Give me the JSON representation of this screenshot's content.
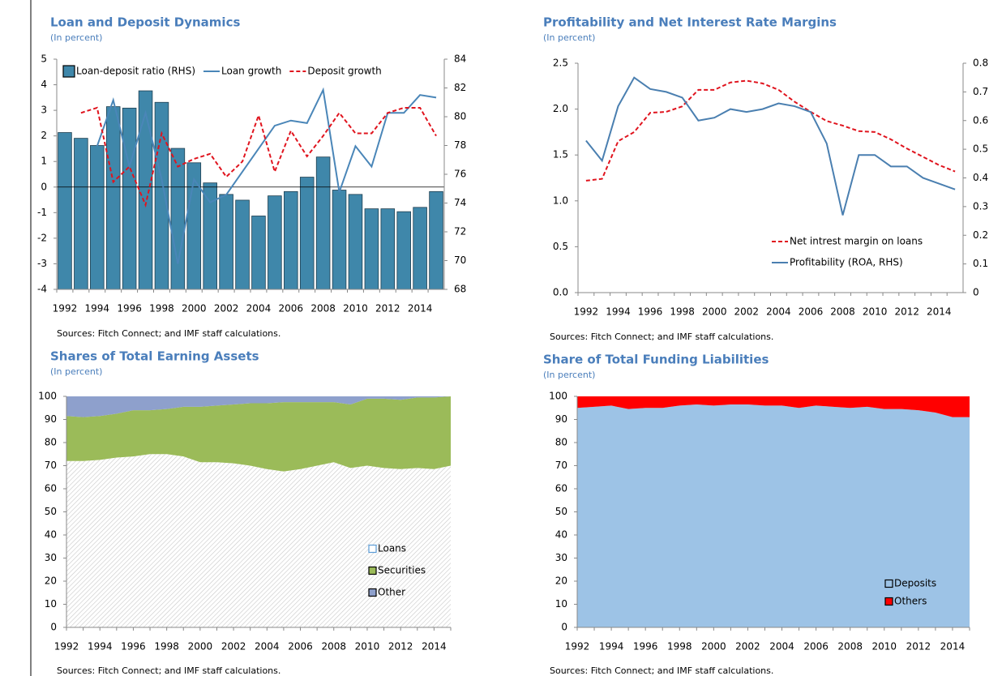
{
  "chart_data": [
    {
      "type": "combo",
      "title": "Loan and Deposit Dynamics",
      "subtitle": "(In percent)",
      "source": "Sources: Fitch Connect; and IMF staff calculations.",
      "categories": [
        "1992",
        null,
        "1994",
        null,
        "1996",
        null,
        "1998",
        null,
        "2000",
        null,
        "2002",
        null,
        "2004",
        null,
        "2006",
        null,
        "2008",
        null,
        "2010",
        null,
        "2012",
        null,
        "2014",
        null
      ],
      "ylim": [
        -4,
        5
      ],
      "yticks": [
        -4,
        -3,
        -2,
        -1,
        0,
        1,
        2,
        3,
        4,
        5
      ],
      "y2lim": [
        68,
        84
      ],
      "y2ticks": [
        68,
        70,
        72,
        74,
        76,
        78,
        80,
        82,
        84
      ],
      "legend": "top",
      "series": [
        {
          "name": "Loan-deposit ratio (RHS)",
          "kind": "bar",
          "axis": "y2",
          "color": "#3f87aa",
          "values": [
            78.9,
            78.5,
            78.0,
            80.7,
            80.6,
            81.8,
            81.0,
            77.8,
            76.8,
            75.4,
            74.6,
            74.2,
            73.1,
            74.5,
            74.8,
            75.8,
            77.2,
            74.9,
            74.6,
            73.6,
            73.6,
            73.4,
            73.7,
            74.8
          ]
        },
        {
          "name": "Loan growth",
          "kind": "line",
          "color": "#4a86b8",
          "style": "solid",
          "values": [
            null,
            null,
            1.6,
            3.4,
            0.8,
            2.9,
            0.3,
            -3.0,
            0.3,
            -0.6,
            -0.3,
            0.6,
            1.5,
            2.4,
            2.6,
            2.5,
            3.8,
            -0.2,
            1.6,
            0.8,
            2.9,
            2.9,
            3.6,
            3.5
          ]
        },
        {
          "name": "Deposit growth",
          "kind": "line",
          "color": "#e0141e",
          "style": "dashed",
          "values": [
            null,
            2.9,
            3.1,
            0.2,
            0.8,
            -0.7,
            2.1,
            0.8,
            1.1,
            1.3,
            0.4,
            1.0,
            2.8,
            0.6,
            2.2,
            1.2,
            2.0,
            2.9,
            2.1,
            2.1,
            2.9,
            3.1,
            3.1,
            2.0
          ]
        }
      ]
    },
    {
      "type": "line",
      "title": "Profitability and Net Interest Rate Margins",
      "subtitle": "(In percent)",
      "source": "Sources: Fitch Connect; and IMF staff calculations.",
      "categories": [
        "1992",
        null,
        "1994",
        null,
        "1996",
        null,
        "1998",
        null,
        "2000",
        null,
        "2002",
        null,
        "2004",
        null,
        "2006",
        null,
        "2008",
        null,
        "2010",
        null,
        "2012",
        null,
        "2014",
        null
      ],
      "ylim": [
        0,
        2.5
      ],
      "yticks": [
        {
          "value": 0,
          "label": "0.0"
        },
        0.5,
        {
          "value": 1,
          "label": "1.0"
        },
        1.5,
        {
          "value": 2,
          "label": "2.0"
        },
        2.5
      ],
      "y2lim": [
        0,
        0.8
      ],
      "y2ticks": [
        0,
        0.1,
        0.2,
        0.3,
        0.4,
        0.5,
        0.6,
        0.7,
        0.8
      ],
      "legend": "lower right",
      "series": [
        {
          "name": "Net intrest margin on loans",
          "kind": "line",
          "color": "#e0141e",
          "style": "dashed",
          "values": [
            1.22,
            1.24,
            1.65,
            1.75,
            1.96,
            1.97,
            2.03,
            2.21,
            2.21,
            2.29,
            2.31,
            2.28,
            2.21,
            2.08,
            1.97,
            1.87,
            1.82,
            1.76,
            1.75,
            1.67,
            1.57,
            1.48,
            1.39,
            1.32
          ]
        },
        {
          "name": "Profitability (ROA, RHS)",
          "kind": "line",
          "axis": "y2",
          "color": "#4a7fb0",
          "style": "solid",
          "values": [
            0.53,
            0.46,
            0.65,
            0.75,
            0.71,
            0.7,
            0.68,
            0.6,
            0.61,
            0.64,
            0.63,
            0.64,
            0.66,
            0.65,
            0.63,
            0.52,
            0.27,
            0.48,
            0.48,
            0.44,
            0.44,
            0.4,
            0.38,
            0.36
          ]
        }
      ]
    },
    {
      "type": "area",
      "title": "Shares of Total Earning Assets",
      "subtitle": "(In percent)",
      "source": "Sources: Fitch Connect; and IMF staff calculations.",
      "categories": [
        "1992",
        null,
        "1994",
        null,
        "1996",
        null,
        "1998",
        null,
        "2000",
        null,
        "2002",
        null,
        "2004",
        null,
        "2006",
        null,
        "2008",
        null,
        "2010",
        null,
        "2012",
        null,
        "2014",
        null
      ],
      "ylim": [
        0,
        100
      ],
      "yticks": [
        0,
        10,
        20,
        30,
        40,
        50,
        60,
        70,
        80,
        90,
        100
      ],
      "legend": "lower right",
      "series": [
        {
          "name": "Loans",
          "color": "#e8e8e8",
          "pattern": "hatch",
          "values": [
            72,
            72,
            72.5,
            73.5,
            74,
            75,
            75,
            74,
            71.5,
            71.5,
            71,
            70,
            68.5,
            67.5,
            68.5,
            70,
            71.5,
            69,
            70,
            69,
            68.5,
            69,
            68.5,
            70
          ]
        },
        {
          "name": "Securities",
          "color": "#9bbb59",
          "values": [
            19.5,
            19,
            19,
            19,
            20,
            19,
            19.5,
            21.5,
            24,
            24.5,
            25.5,
            27,
            28.5,
            30,
            29,
            27.5,
            26,
            27.5,
            29,
            30,
            30,
            30.5,
            31,
            30
          ]
        },
        {
          "name": "Other",
          "color": "#8ea0cc",
          "values": [
            8.5,
            9,
            8.5,
            7.5,
            6,
            6,
            5.5,
            4.5,
            4.5,
            4,
            3.5,
            3,
            3,
            2.5,
            2.5,
            2.5,
            2.5,
            3.5,
            1,
            1,
            1.5,
            0.5,
            0.5,
            0
          ]
        }
      ]
    },
    {
      "type": "area",
      "title": "Share of Total Funding Liabilities",
      "subtitle": "(In percent)",
      "source": "Sources: Fitch Connect; and IMF staff calculations.",
      "categories": [
        "1992",
        null,
        "1994",
        null,
        "1996",
        null,
        "1998",
        null,
        "2000",
        null,
        "2002",
        null,
        "2004",
        null,
        "2006",
        null,
        "2008",
        null,
        "2010",
        null,
        "2012",
        null,
        "2014",
        null
      ],
      "ylim": [
        0,
        100
      ],
      "yticks": [
        0,
        10,
        20,
        30,
        40,
        50,
        60,
        70,
        80,
        90,
        100
      ],
      "legend": "lower right",
      "series": [
        {
          "name": "Deposits",
          "color": "#9dc3e6",
          "values": [
            95,
            95.5,
            96,
            94.5,
            95,
            95,
            96,
            96.5,
            96,
            96.5,
            96.5,
            96,
            96,
            95,
            96,
            95.5,
            95,
            95.5,
            94.5,
            94.5,
            94,
            93,
            91,
            91
          ]
        },
        {
          "name": "Others",
          "color": "#ff0000",
          "values": [
            5,
            4.5,
            4,
            5.5,
            5,
            5,
            4,
            3.5,
            4,
            3.5,
            3.5,
            4,
            4,
            5,
            4,
            4.5,
            5,
            4.5,
            5.5,
            5.5,
            6,
            7,
            9,
            9
          ]
        }
      ]
    }
  ]
}
